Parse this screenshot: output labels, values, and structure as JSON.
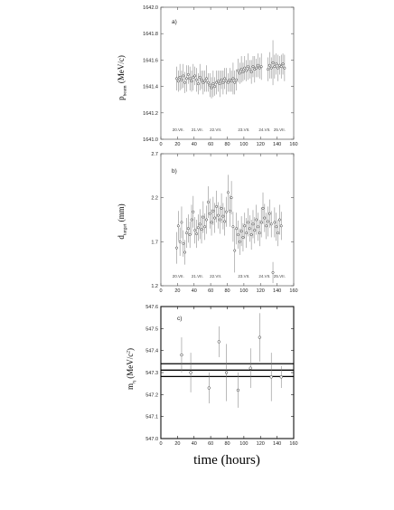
{
  "figure": {
    "xlabel": "time (hours)"
  },
  "chart_data": [
    {
      "type": "scatter",
      "panel_label": "a)",
      "ylabel": "p",
      "ylabel_sub": "beam",
      "ylabel_unit": "(MeV/c)",
      "xlim": [
        0,
        160
      ],
      "ylim": [
        1641.0,
        1642.0
      ],
      "xticks": [
        0,
        20,
        40,
        60,
        80,
        100,
        120,
        140,
        160
      ],
      "yticks": [
        1641.0,
        1641.2,
        1641.4,
        1641.6,
        1641.8,
        1642.0
      ],
      "ytick_labels": [
        "1641.0",
        "1641.2",
        "1641.4",
        "1641.6",
        "1641.8",
        "1642.0"
      ],
      "day_markers": [
        {
          "x": 21,
          "label": "20.VII."
        },
        {
          "x": 44,
          "label": "21.VII."
        },
        {
          "x": 66,
          "label": "22.VII."
        },
        {
          "x": 100,
          "label": "23.VII."
        },
        {
          "x": 125,
          "label": "24.VII."
        },
        {
          "x": 143,
          "label": "25.VII."
        }
      ],
      "points": [
        {
          "x": 19,
          "y": 1641.46,
          "e": 0.09
        },
        {
          "x": 21,
          "y": 1641.44,
          "e": 0.08
        },
        {
          "x": 23,
          "y": 1641.47,
          "e": 0.1
        },
        {
          "x": 25,
          "y": 1641.45,
          "e": 0.07
        },
        {
          "x": 27,
          "y": 1641.48,
          "e": 0.09
        },
        {
          "x": 29,
          "y": 1641.43,
          "e": 0.08
        },
        {
          "x": 31,
          "y": 1641.46,
          "e": 0.1
        },
        {
          "x": 33,
          "y": 1641.49,
          "e": 0.07
        },
        {
          "x": 35,
          "y": 1641.46,
          "e": 0.09
        },
        {
          "x": 37,
          "y": 1641.44,
          "e": 0.08
        },
        {
          "x": 39,
          "y": 1641.47,
          "e": 0.1
        },
        {
          "x": 41,
          "y": 1641.48,
          "e": 0.07
        },
        {
          "x": 43,
          "y": 1641.45,
          "e": 0.09
        },
        {
          "x": 45,
          "y": 1641.42,
          "e": 0.08
        },
        {
          "x": 47,
          "y": 1641.47,
          "e": 0.1
        },
        {
          "x": 49,
          "y": 1641.45,
          "e": 0.07
        },
        {
          "x": 51,
          "y": 1641.43,
          "e": 0.09
        },
        {
          "x": 53,
          "y": 1641.44,
          "e": 0.08
        },
        {
          "x": 55,
          "y": 1641.46,
          "e": 0.1
        },
        {
          "x": 57,
          "y": 1641.43,
          "e": 0.07
        },
        {
          "x": 59,
          "y": 1641.41,
          "e": 0.09
        },
        {
          "x": 61,
          "y": 1641.39,
          "e": 0.08
        },
        {
          "x": 63,
          "y": 1641.42,
          "e": 0.1
        },
        {
          "x": 65,
          "y": 1641.4,
          "e": 0.07
        },
        {
          "x": 67,
          "y": 1641.43,
          "e": 0.09
        },
        {
          "x": 69,
          "y": 1641.44,
          "e": 0.08
        },
        {
          "x": 71,
          "y": 1641.42,
          "e": 0.1
        },
        {
          "x": 73,
          "y": 1641.45,
          "e": 0.07
        },
        {
          "x": 75,
          "y": 1641.43,
          "e": 0.09
        },
        {
          "x": 77,
          "y": 1641.46,
          "e": 0.08
        },
        {
          "x": 79,
          "y": 1641.44,
          "e": 0.1
        },
        {
          "x": 81,
          "y": 1641.43,
          "e": 0.07
        },
        {
          "x": 83,
          "y": 1641.45,
          "e": 0.09
        },
        {
          "x": 85,
          "y": 1641.44,
          "e": 0.08
        },
        {
          "x": 87,
          "y": 1641.46,
          "e": 0.12
        },
        {
          "x": 89,
          "y": 1641.43,
          "e": 0.09
        },
        {
          "x": 91,
          "y": 1641.45,
          "e": 0.08
        },
        {
          "x": 93,
          "y": 1641.52,
          "e": 0.09
        },
        {
          "x": 95,
          "y": 1641.5,
          "e": 0.08
        },
        {
          "x": 97,
          "y": 1641.53,
          "e": 0.1
        },
        {
          "x": 99,
          "y": 1641.51,
          "e": 0.07
        },
        {
          "x": 101,
          "y": 1641.54,
          "e": 0.09
        },
        {
          "x": 103,
          "y": 1641.52,
          "e": 0.08
        },
        {
          "x": 105,
          "y": 1641.55,
          "e": 0.1
        },
        {
          "x": 107,
          "y": 1641.53,
          "e": 0.07
        },
        {
          "x": 109,
          "y": 1641.51,
          "e": 0.09
        },
        {
          "x": 111,
          "y": 1641.55,
          "e": 0.08
        },
        {
          "x": 113,
          "y": 1641.53,
          "e": 0.1
        },
        {
          "x": 115,
          "y": 1641.54,
          "e": 0.07
        },
        {
          "x": 117,
          "y": 1641.56,
          "e": 0.09
        },
        {
          "x": 119,
          "y": 1641.54,
          "e": 0.08
        },
        {
          "x": 121,
          "y": 1641.55,
          "e": 0.1
        },
        {
          "x": 129,
          "y": 1641.53,
          "e": 0.09
        },
        {
          "x": 131,
          "y": 1641.56,
          "e": 0.1
        },
        {
          "x": 133,
          "y": 1641.54,
          "e": 0.08
        },
        {
          "x": 135,
          "y": 1641.58,
          "e": 0.17
        },
        {
          "x": 137,
          "y": 1641.55,
          "e": 0.09
        },
        {
          "x": 139,
          "y": 1641.57,
          "e": 0.08
        },
        {
          "x": 141,
          "y": 1641.54,
          "e": 0.1
        },
        {
          "x": 143,
          "y": 1641.56,
          "e": 0.07
        },
        {
          "x": 145,
          "y": 1641.55,
          "e": 0.09
        },
        {
          "x": 147,
          "y": 1641.57,
          "e": 0.08
        },
        {
          "x": 149,
          "y": 1641.54,
          "e": 0.1
        }
      ]
    },
    {
      "type": "scatter",
      "panel_label": "b)",
      "ylabel": "d",
      "ylabel_sub": "target",
      "ylabel_unit": "(mm)",
      "xlim": [
        0,
        160
      ],
      "ylim": [
        1.2,
        2.7
      ],
      "xticks": [
        0,
        20,
        40,
        60,
        80,
        100,
        120,
        140,
        160
      ],
      "yticks": [
        1.2,
        1.7,
        2.2,
        2.7
      ],
      "ytick_labels": [
        "1.2",
        "1.7",
        "2.2",
        "2.7"
      ],
      "day_markers": [
        {
          "x": 21,
          "label": "20.VII."
        },
        {
          "x": 44,
          "label": "21.VII."
        },
        {
          "x": 66,
          "label": "22.VII."
        },
        {
          "x": 100,
          "label": "23.VII."
        },
        {
          "x": 125,
          "label": "24.VII."
        },
        {
          "x": 143,
          "label": "25.VII."
        }
      ],
      "points": [
        {
          "x": 19,
          "y": 1.63,
          "e": 0.18
        },
        {
          "x": 21,
          "y": 1.88,
          "e": 0.17
        },
        {
          "x": 23,
          "y": 1.7,
          "e": 0.16
        },
        {
          "x": 25,
          "y": 1.92,
          "e": 0.18
        },
        {
          "x": 27,
          "y": 1.68,
          "e": 0.15
        },
        {
          "x": 29,
          "y": 1.58,
          "e": 0.14
        },
        {
          "x": 31,
          "y": 1.8,
          "e": 0.17
        },
        {
          "x": 33,
          "y": 1.85,
          "e": 0.16
        },
        {
          "x": 35,
          "y": 1.78,
          "e": 0.15
        },
        {
          "x": 37,
          "y": 1.95,
          "e": 0.17
        },
        {
          "x": 39,
          "y": 2.04,
          "e": 0.18
        },
        {
          "x": 41,
          "y": 1.83,
          "e": 0.15
        },
        {
          "x": 43,
          "y": 1.79,
          "e": 0.16
        },
        {
          "x": 45,
          "y": 1.86,
          "e": 0.15
        },
        {
          "x": 47,
          "y": 1.9,
          "e": 0.17
        },
        {
          "x": 49,
          "y": 1.84,
          "e": 0.16
        },
        {
          "x": 51,
          "y": 1.98,
          "e": 0.18
        },
        {
          "x": 53,
          "y": 1.87,
          "e": 0.15
        },
        {
          "x": 55,
          "y": 1.95,
          "e": 0.16
        },
        {
          "x": 57,
          "y": 2.15,
          "e": 0.18
        },
        {
          "x": 59,
          "y": 2.02,
          "e": 0.17
        },
        {
          "x": 61,
          "y": 1.92,
          "e": 0.15
        },
        {
          "x": 63,
          "y": 2.05,
          "e": 0.16
        },
        {
          "x": 65,
          "y": 1.97,
          "e": 0.17
        },
        {
          "x": 67,
          "y": 2.1,
          "e": 0.18
        },
        {
          "x": 69,
          "y": 2.0,
          "e": 0.15
        },
        {
          "x": 71,
          "y": 1.95,
          "e": 0.16
        },
        {
          "x": 73,
          "y": 2.08,
          "e": 0.17
        },
        {
          "x": 75,
          "y": 1.99,
          "e": 0.15
        },
        {
          "x": 77,
          "y": 1.93,
          "e": 0.16
        },
        {
          "x": 79,
          "y": 2.04,
          "e": 0.17
        },
        {
          "x": 81,
          "y": 2.26,
          "e": 0.2
        },
        {
          "x": 83,
          "y": 2.05,
          "e": 0.18
        },
        {
          "x": 85,
          "y": 2.2,
          "e": 0.19
        },
        {
          "x": 87,
          "y": 1.87,
          "e": 0.17
        },
        {
          "x": 89,
          "y": 1.6,
          "e": 0.25
        },
        {
          "x": 91,
          "y": 1.85,
          "e": 0.18
        },
        {
          "x": 93,
          "y": 1.78,
          "e": 0.16
        },
        {
          "x": 95,
          "y": 1.7,
          "e": 0.15
        },
        {
          "x": 97,
          "y": 1.82,
          "e": 0.17
        },
        {
          "x": 99,
          "y": 1.75,
          "e": 0.16
        },
        {
          "x": 101,
          "y": 1.88,
          "e": 0.15
        },
        {
          "x": 103,
          "y": 1.8,
          "e": 0.17
        },
        {
          "x": 105,
          "y": 1.92,
          "e": 0.16
        },
        {
          "x": 107,
          "y": 1.85,
          "e": 0.15
        },
        {
          "x": 109,
          "y": 1.78,
          "e": 0.17
        },
        {
          "x": 111,
          "y": 1.9,
          "e": 0.16
        },
        {
          "x": 113,
          "y": 1.83,
          "e": 0.15
        },
        {
          "x": 115,
          "y": 1.95,
          "e": 0.17
        },
        {
          "x": 117,
          "y": 1.87,
          "e": 0.16
        },
        {
          "x": 119,
          "y": 1.8,
          "e": 0.15
        },
        {
          "x": 121,
          "y": 1.92,
          "e": 0.17
        },
        {
          "x": 123,
          "y": 2.08,
          "e": 0.18
        },
        {
          "x": 125,
          "y": 1.97,
          "e": 0.16
        },
        {
          "x": 127,
          "y": 1.88,
          "e": 0.15
        },
        {
          "x": 129,
          "y": 1.93,
          "e": 0.17
        },
        {
          "x": 131,
          "y": 2.02,
          "e": 0.16
        },
        {
          "x": 133,
          "y": 1.9,
          "e": 0.15
        },
        {
          "x": 135,
          "y": 1.35,
          "e": 0.12
        },
        {
          "x": 137,
          "y": 1.92,
          "e": 0.17
        },
        {
          "x": 139,
          "y": 1.87,
          "e": 0.16
        },
        {
          "x": 141,
          "y": 1.8,
          "e": 0.15
        },
        {
          "x": 143,
          "y": 1.95,
          "e": 0.17
        },
        {
          "x": 145,
          "y": 1.88,
          "e": 0.16
        }
      ]
    },
    {
      "type": "scatter",
      "panel_label": "c)",
      "ylabel": "m",
      "ylabel_sub": "η",
      "ylabel_unit": "(MeV/c",
      "ylabel_unit_sup": "2",
      "ylabel_unit_close": ")",
      "xlim": [
        0,
        160
      ],
      "ylim": [
        547.0,
        547.6
      ],
      "xticks": [
        0,
        20,
        40,
        60,
        80,
        100,
        120,
        140,
        160
      ],
      "yticks": [
        547.0,
        547.1,
        547.2,
        547.3,
        547.4,
        547.5,
        547.6
      ],
      "ytick_labels": [
        "547.0",
        "547.1",
        "547.2",
        "547.3",
        "547.4",
        "547.5",
        "547.6"
      ],
      "hlines": [
        547.282,
        547.311,
        547.34
      ],
      "points": [
        {
          "x": 25,
          "y": 547.38,
          "e": 0.08
        },
        {
          "x": 36,
          "y": 547.3,
          "e": 0.09
        },
        {
          "x": 58,
          "y": 547.23,
          "e": 0.07
        },
        {
          "x": 70,
          "y": 547.44,
          "e": 0.07
        },
        {
          "x": 79,
          "y": 547.3,
          "e": 0.13
        },
        {
          "x": 93,
          "y": 547.22,
          "e": 0.08
        },
        {
          "x": 108,
          "y": 547.32,
          "e": 0.09
        },
        {
          "x": 119,
          "y": 547.46,
          "e": 0.11
        },
        {
          "x": 133,
          "y": 547.28,
          "e": 0.11
        },
        {
          "x": 145,
          "y": 547.28,
          "e": 0.05
        }
      ]
    }
  ]
}
